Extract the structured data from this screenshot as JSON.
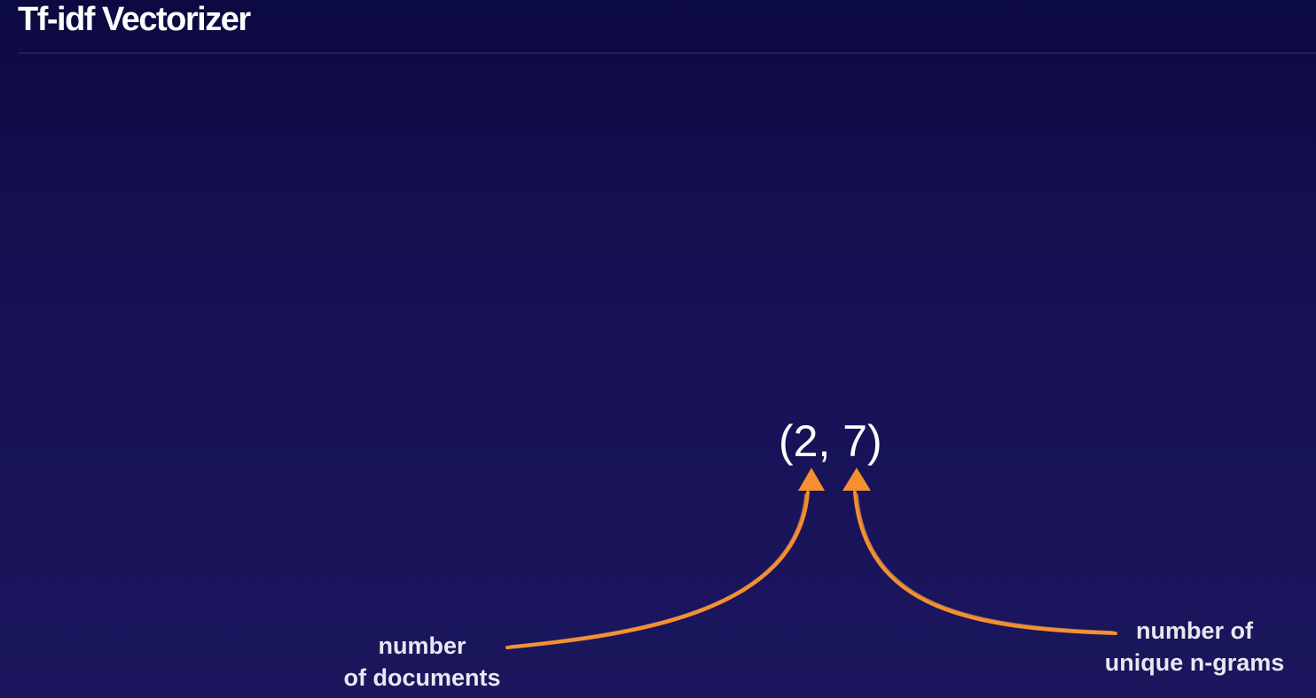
{
  "slide": {
    "title": "Tf-idf Vectorizer",
    "shape_text": "(2, 7)",
    "annotations": {
      "documents": {
        "line1": "number",
        "line2": "of documents"
      },
      "ngrams": {
        "line1": "number of",
        "line2": "unique n-grams"
      }
    },
    "colors": {
      "background_top": "#0c0a41",
      "background_bottom": "#1b165d",
      "text": "#ffffff",
      "label_text": "#e9e8f2",
      "arrow": "#f4902e"
    }
  }
}
